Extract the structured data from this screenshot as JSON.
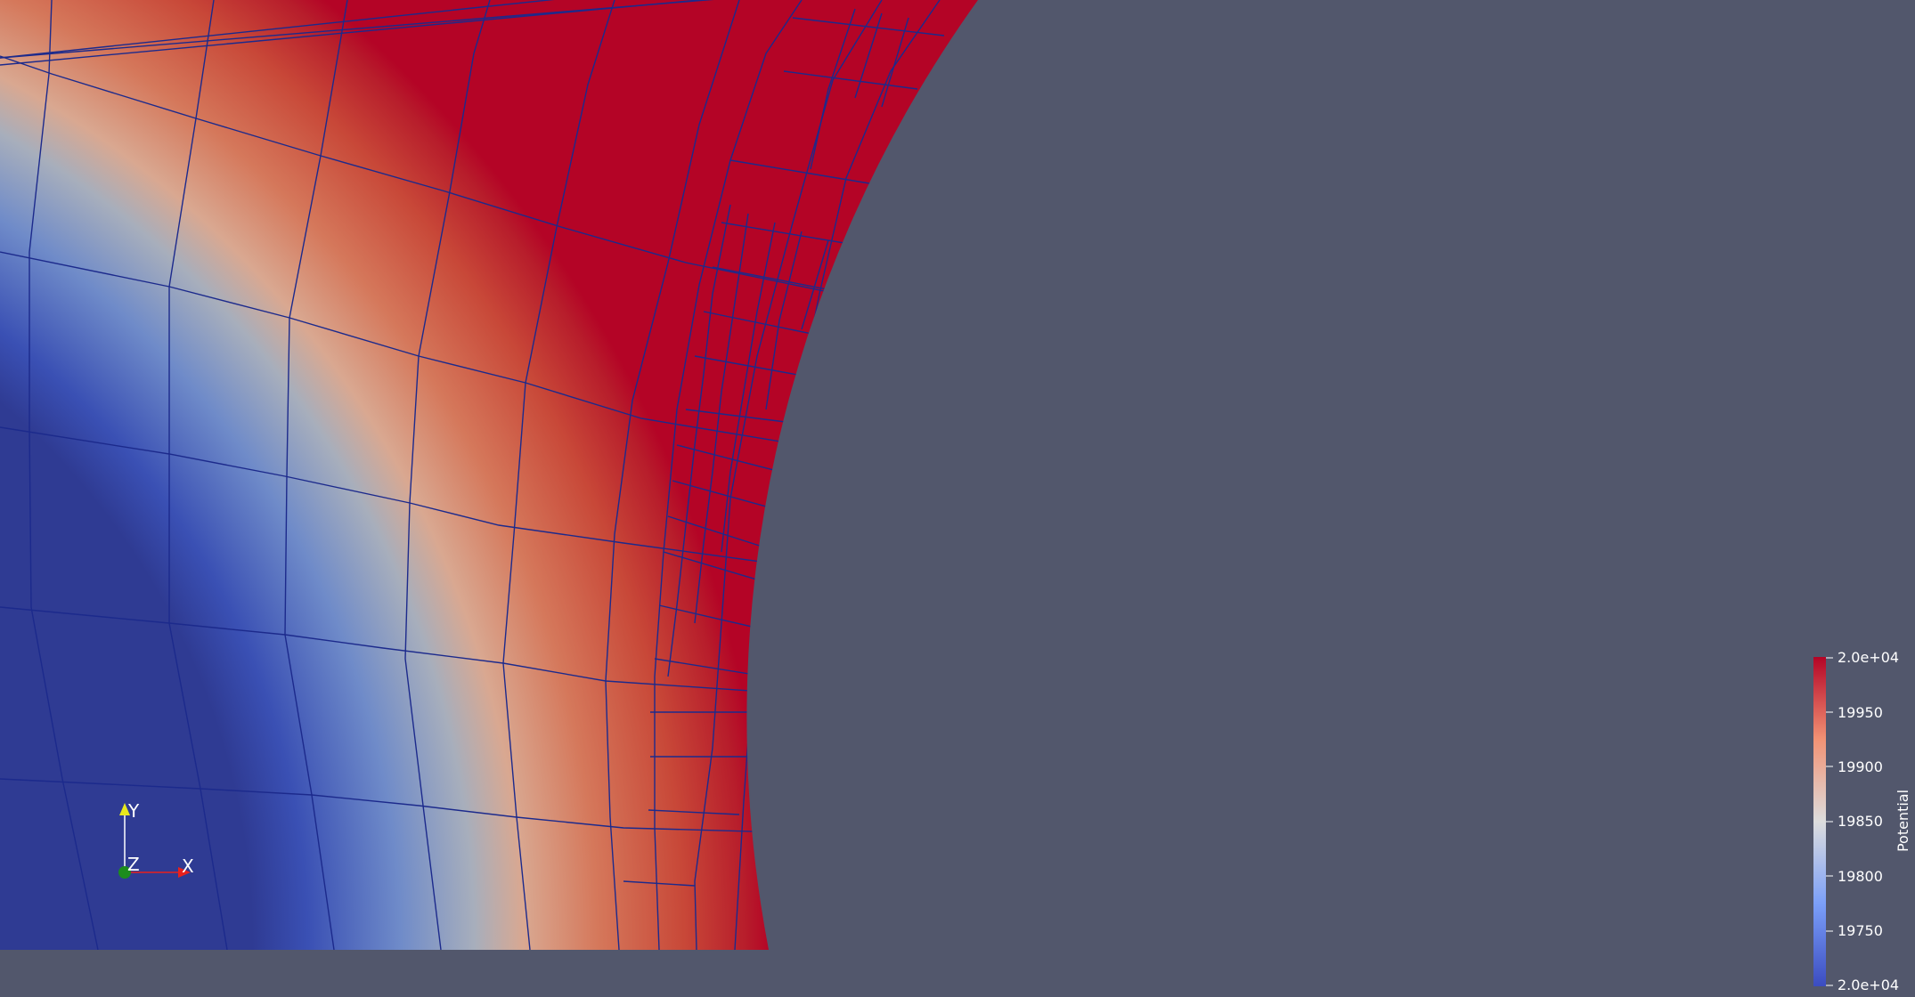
{
  "window": {
    "title": "ParaView Render View"
  },
  "scalar_bar": {
    "title": "Potential",
    "ticks": [
      "2.0e+04",
      "19950",
      "19900",
      "19850",
      "19800",
      "19750",
      "2.0e+04"
    ],
    "colormap": {
      "low": "#3b4cc0",
      "mid": "#dddddd",
      "high": "#b40426"
    }
  },
  "orientation_axes": {
    "x_label": "X",
    "y_label": "Y",
    "z_label": "Z",
    "x_color": "#e8201c",
    "y_color": "#e8e81c",
    "z_color": "#1c8c1c"
  },
  "colors": {
    "background": "#52576c",
    "mesh_edges": "#1c2a8c"
  }
}
